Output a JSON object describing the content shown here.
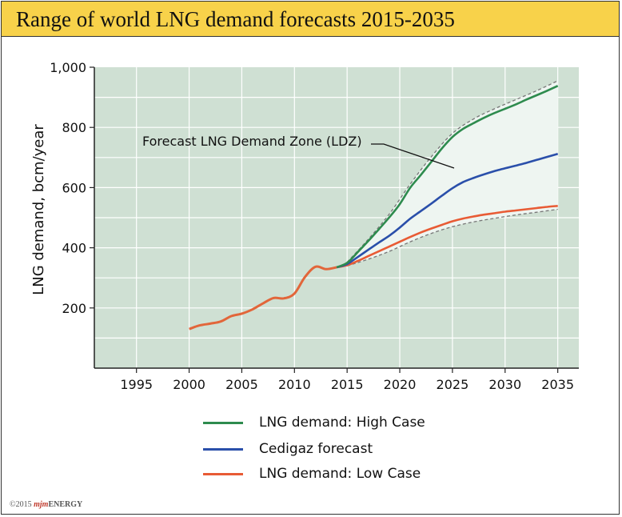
{
  "title": "Range of world LNG demand forecasts 2015-2035",
  "copyright": {
    "year_text": "©2015",
    "brand_mark": "mjm",
    "brand_name": "ENERGY"
  },
  "colors": {
    "title_bg": "#f8d24a",
    "plot_bg": "#cfe0d3",
    "zone_fill": "#eef5f1",
    "high": "#2e8b4e",
    "cedigaz": "#2a4faa",
    "low": "#e85b35",
    "historic": "#e2663a"
  },
  "chart_data": {
    "type": "line",
    "title": "Range of world LNG demand forecasts 2015-2035",
    "xlabel": "",
    "ylabel": "LNG demand, bcm/year",
    "xlim": [
      1991,
      2037
    ],
    "ylim": [
      0,
      1000
    ],
    "x_ticks": [
      1995,
      2000,
      2005,
      2010,
      2015,
      2020,
      2025,
      2030,
      2035
    ],
    "y_ticks": [
      200,
      400,
      600,
      800,
      1000
    ],
    "y_tick_labels": [
      "200",
      "400",
      "600",
      "800",
      "1,000"
    ],
    "grid": true,
    "annotation": "Forecast LNG Demand Zone (LDZ)",
    "series": [
      {
        "name": "Historical",
        "x": [
          2000,
          2001,
          2002,
          2003,
          2004,
          2005,
          2006,
          2007,
          2008,
          2009,
          2010,
          2011,
          2012,
          2013,
          2014
        ],
        "values": [
          130,
          142,
          148,
          155,
          173,
          181,
          195,
          215,
          233,
          232,
          248,
          303,
          337,
          329,
          335
        ]
      },
      {
        "name": "LNG demand: High Case",
        "x": [
          2014,
          2015,
          2016,
          2017,
          2018,
          2019,
          2020,
          2021,
          2022,
          2023,
          2024,
          2025,
          2026,
          2027,
          2028,
          2029,
          2030,
          2031,
          2032,
          2033,
          2034,
          2035
        ],
        "values": [
          335,
          350,
          385,
          422,
          461,
          501,
          545,
          600,
          642,
          686,
          730,
          768,
          795,
          814,
          832,
          848,
          862,
          876,
          892,
          907,
          922,
          938
        ]
      },
      {
        "name": "Cedigaz forecast",
        "x": [
          2014,
          2015,
          2016,
          2017,
          2018,
          2019,
          2020,
          2021,
          2022,
          2023,
          2024,
          2025,
          2026,
          2027,
          2028,
          2029,
          2030,
          2031,
          2032,
          2033,
          2034,
          2035
        ],
        "values": [
          335,
          346,
          369,
          393,
          417,
          440,
          467,
          497,
          522,
          547,
          573,
          598,
          618,
          632,
          644,
          655,
          664,
          673,
          682,
          692,
          702,
          712
        ]
      },
      {
        "name": "LNG demand: Low Case",
        "x": [
          2014,
          2015,
          2016,
          2017,
          2018,
          2019,
          2020,
          2021,
          2022,
          2023,
          2024,
          2025,
          2026,
          2027,
          2028,
          2029,
          2030,
          2031,
          2032,
          2033,
          2034,
          2035
        ],
        "values": [
          335,
          342,
          356,
          372,
          388,
          404,
          420,
          436,
          451,
          464,
          476,
          488,
          497,
          504,
          510,
          515,
          520,
          524,
          528,
          532,
          536,
          539
        ]
      },
      {
        "name": "LDZ upper bound",
        "x": [
          2015,
          2017,
          2019,
          2021,
          2023,
          2025,
          2027,
          2029,
          2031,
          2033,
          2035
        ],
        "values": [
          352,
          428,
          512,
          612,
          703,
          780,
          828,
          862,
          892,
          922,
          955
        ]
      },
      {
        "name": "LDZ lower bound",
        "x": [
          2015,
          2017,
          2019,
          2021,
          2023,
          2025,
          2027,
          2029,
          2031,
          2033,
          2035
        ],
        "values": [
          340,
          362,
          388,
          420,
          448,
          470,
          486,
          498,
          509,
          518,
          528
        ]
      }
    ],
    "legend": [
      {
        "label": "LNG demand: High Case",
        "color": "#2e8b4e"
      },
      {
        "label": "Cedigaz forecast",
        "color": "#2a4faa"
      },
      {
        "label": "LNG demand: Low Case",
        "color": "#e85b35"
      }
    ]
  }
}
